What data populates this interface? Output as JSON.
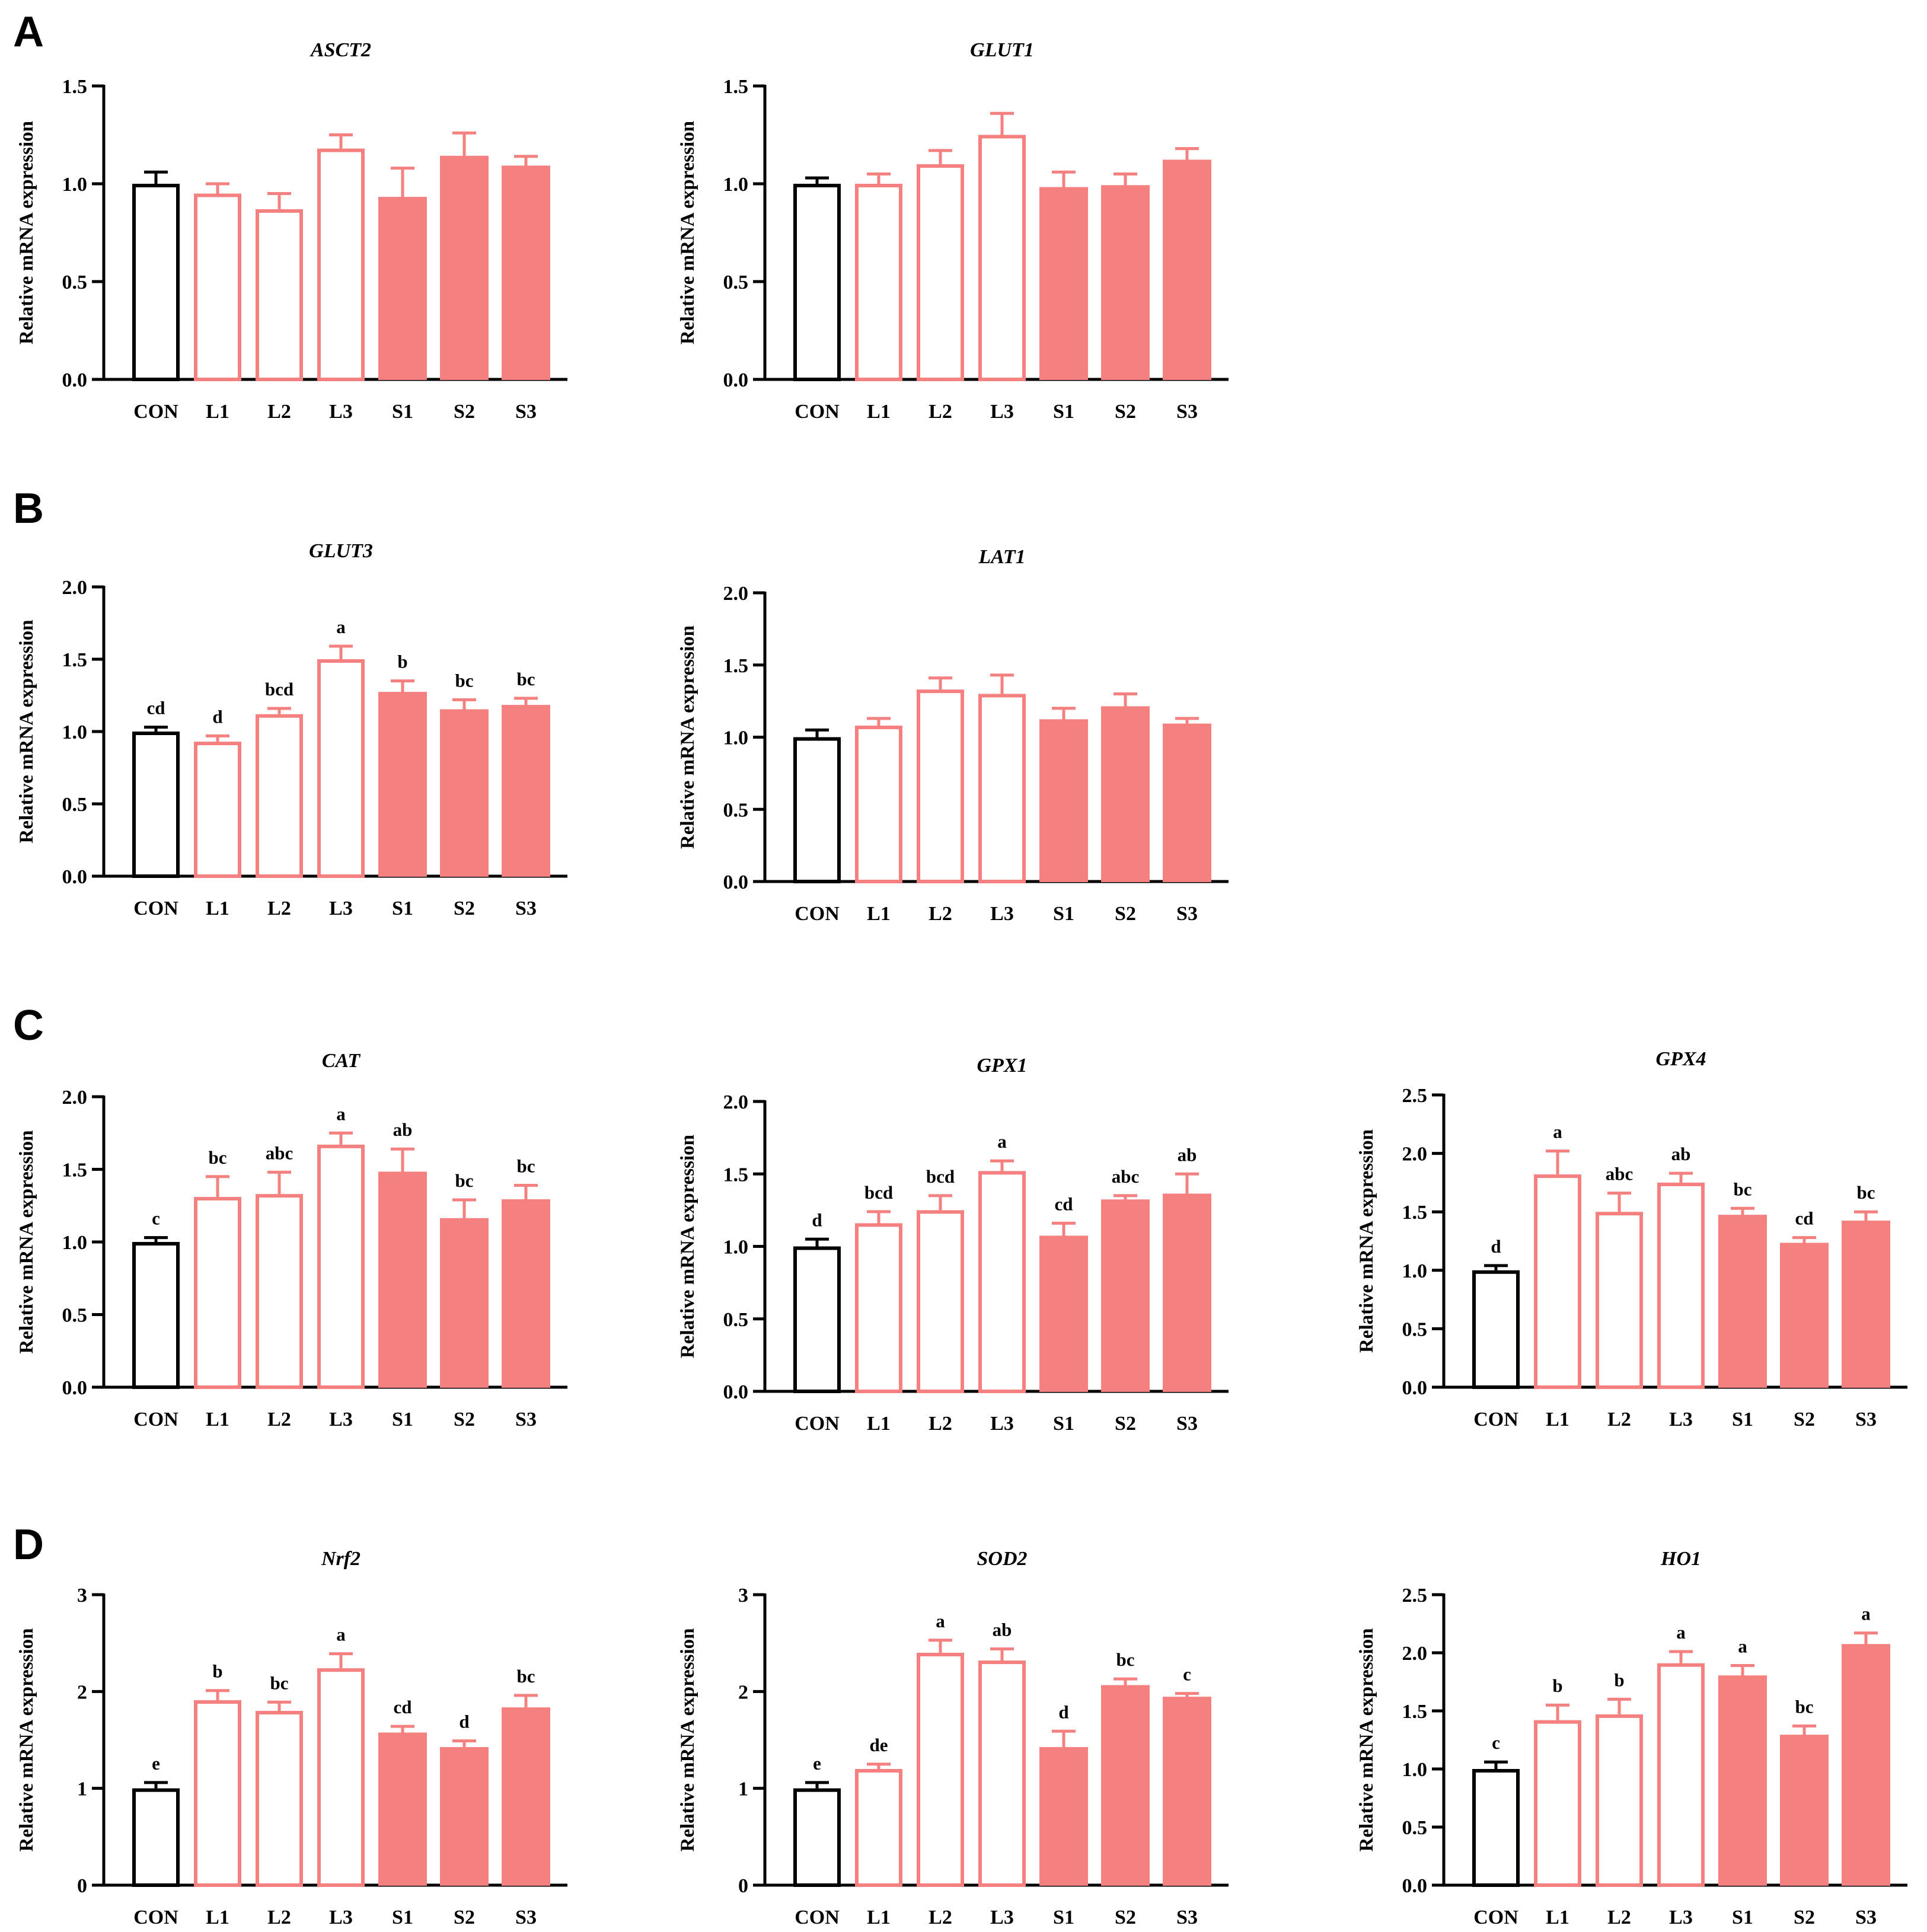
{
  "figure": {
    "panel_labels": [
      "A",
      "B",
      "C",
      "D"
    ],
    "ylabel": "Relative mRNA expression",
    "colors": {
      "control": "#000000",
      "treatment": "#F48080",
      "axis": "#000000"
    }
  },
  "chart_data": [
    {
      "type": "bar",
      "panel": "A",
      "title": "ASCT2",
      "ylim": [
        0,
        1.5
      ],
      "yticks": [
        "0.0",
        "0.5",
        "1.0",
        "1.5"
      ],
      "categories": [
        "CON",
        "L1",
        "L2",
        "L3",
        "S1",
        "S2",
        "S3"
      ],
      "values": [
        1.0,
        0.95,
        0.87,
        1.18,
        0.93,
        1.14,
        1.09
      ],
      "errors": [
        0.06,
        0.05,
        0.08,
        0.07,
        0.15,
        0.12,
        0.05
      ],
      "labels": [
        "",
        "",
        "",
        "",
        "",
        "",
        ""
      ]
    },
    {
      "type": "bar",
      "panel": "A",
      "title": "GLUT1",
      "ylim": [
        0,
        1.5
      ],
      "yticks": [
        "0.0",
        "0.5",
        "1.0",
        "1.5"
      ],
      "categories": [
        "CON",
        "L1",
        "L2",
        "L3",
        "S1",
        "S2",
        "S3"
      ],
      "values": [
        1.0,
        1.0,
        1.1,
        1.25,
        0.98,
        0.99,
        1.12
      ],
      "errors": [
        0.03,
        0.05,
        0.07,
        0.11,
        0.08,
        0.06,
        0.06
      ],
      "labels": [
        "",
        "",
        "",
        "",
        "",
        "",
        ""
      ]
    },
    {
      "type": "bar",
      "panel": "B",
      "title": "GLUT3",
      "ylim": [
        0,
        2.0
      ],
      "yticks": [
        "0.0",
        "0.5",
        "1.0",
        "1.5",
        "2.0"
      ],
      "categories": [
        "CON",
        "L1",
        "L2",
        "L3",
        "S1",
        "S2",
        "S3"
      ],
      "values": [
        1.0,
        0.93,
        1.12,
        1.5,
        1.27,
        1.15,
        1.18
      ],
      "errors": [
        0.03,
        0.04,
        0.04,
        0.09,
        0.08,
        0.07,
        0.05
      ],
      "labels": [
        "cd",
        "d",
        "bcd",
        "a",
        "b",
        "bc",
        "bc"
      ]
    },
    {
      "type": "bar",
      "panel": "B",
      "title": "LAT1",
      "ylim": [
        0,
        2.0
      ],
      "yticks": [
        "0.0",
        "0.5",
        "1.0",
        "1.5",
        "2.0"
      ],
      "categories": [
        "CON",
        "L1",
        "L2",
        "L3",
        "S1",
        "S2",
        "S3"
      ],
      "values": [
        1.0,
        1.08,
        1.33,
        1.3,
        1.12,
        1.21,
        1.09
      ],
      "errors": [
        0.05,
        0.05,
        0.08,
        0.13,
        0.08,
        0.09,
        0.04
      ],
      "labels": [
        "",
        "",
        "",
        "",
        "",
        "",
        ""
      ]
    },
    {
      "type": "bar",
      "panel": "C",
      "title": "CAT",
      "ylim": [
        0,
        2.0
      ],
      "yticks": [
        "0.0",
        "0.5",
        "1.0",
        "1.5",
        "2.0"
      ],
      "categories": [
        "CON",
        "L1",
        "L2",
        "L3",
        "S1",
        "S2",
        "S3"
      ],
      "values": [
        1.0,
        1.31,
        1.33,
        1.67,
        1.48,
        1.16,
        1.29
      ],
      "errors": [
        0.03,
        0.14,
        0.15,
        0.08,
        0.16,
        0.13,
        0.1
      ],
      "labels": [
        "c",
        "bc",
        "abc",
        "a",
        "ab",
        "bc",
        "bc"
      ]
    },
    {
      "type": "bar",
      "panel": "C",
      "title": "GPX1",
      "ylim": [
        0,
        2.0
      ],
      "yticks": [
        "0.0",
        "0.5",
        "1.0",
        "1.5",
        "2.0"
      ],
      "categories": [
        "CON",
        "L1",
        "L2",
        "L3",
        "S1",
        "S2",
        "S3"
      ],
      "values": [
        1.0,
        1.16,
        1.25,
        1.52,
        1.07,
        1.32,
        1.36
      ],
      "errors": [
        0.05,
        0.08,
        0.1,
        0.07,
        0.09,
        0.03,
        0.14
      ],
      "labels": [
        "d",
        "bcd",
        "bcd",
        "a",
        "cd",
        "abc",
        "ab"
      ]
    },
    {
      "type": "bar",
      "panel": "C",
      "title": "GPX4",
      "ylim": [
        0,
        2.5
      ],
      "yticks": [
        "0.0",
        "0.5",
        "1.0",
        "1.5",
        "2.0",
        "2.5"
      ],
      "categories": [
        "CON",
        "L1",
        "L2",
        "L3",
        "S1",
        "S2",
        "S3"
      ],
      "values": [
        1.0,
        1.82,
        1.5,
        1.75,
        1.47,
        1.23,
        1.42
      ],
      "errors": [
        0.04,
        0.2,
        0.16,
        0.08,
        0.06,
        0.05,
        0.08
      ],
      "labels": [
        "d",
        "a",
        "abc",
        "ab",
        "bc",
        "cd",
        "bc"
      ]
    },
    {
      "type": "bar",
      "panel": "D",
      "title": "Nrf2",
      "ylim": [
        0,
        3
      ],
      "yticks": [
        "0",
        "1",
        "2",
        "3"
      ],
      "categories": [
        "CON",
        "L1",
        "L2",
        "L3",
        "S1",
        "S2",
        "S3"
      ],
      "values": [
        1.0,
        1.91,
        1.8,
        2.24,
        1.57,
        1.42,
        1.83
      ],
      "errors": [
        0.06,
        0.1,
        0.09,
        0.15,
        0.07,
        0.07,
        0.13
      ],
      "labels": [
        "e",
        "b",
        "bc",
        "a",
        "cd",
        "d",
        "bc"
      ]
    },
    {
      "type": "bar",
      "panel": "D",
      "title": "SOD2",
      "ylim": [
        0,
        3
      ],
      "yticks": [
        "0",
        "1",
        "2",
        "3"
      ],
      "categories": [
        "CON",
        "L1",
        "L2",
        "L3",
        "S1",
        "S2",
        "S3"
      ],
      "values": [
        1.0,
        1.2,
        2.4,
        2.32,
        1.42,
        2.06,
        1.94
      ],
      "errors": [
        0.06,
        0.05,
        0.13,
        0.12,
        0.17,
        0.07,
        0.04
      ],
      "labels": [
        "e",
        "de",
        "a",
        "ab",
        "d",
        "bc",
        "c"
      ]
    },
    {
      "type": "bar",
      "panel": "D",
      "title": "HO1",
      "ylim": [
        0,
        2.5
      ],
      "yticks": [
        "0.0",
        "0.5",
        "1.0",
        "1.5",
        "2.0",
        "2.5"
      ],
      "categories": [
        "CON",
        "L1",
        "L2",
        "L3",
        "S1",
        "S2",
        "S3"
      ],
      "values": [
        1.0,
        1.42,
        1.47,
        1.91,
        1.8,
        1.29,
        2.07
      ],
      "errors": [
        0.06,
        0.13,
        0.13,
        0.1,
        0.09,
        0.08,
        0.1
      ],
      "labels": [
        "c",
        "b",
        "b",
        "a",
        "a",
        "bc",
        "a"
      ]
    }
  ]
}
